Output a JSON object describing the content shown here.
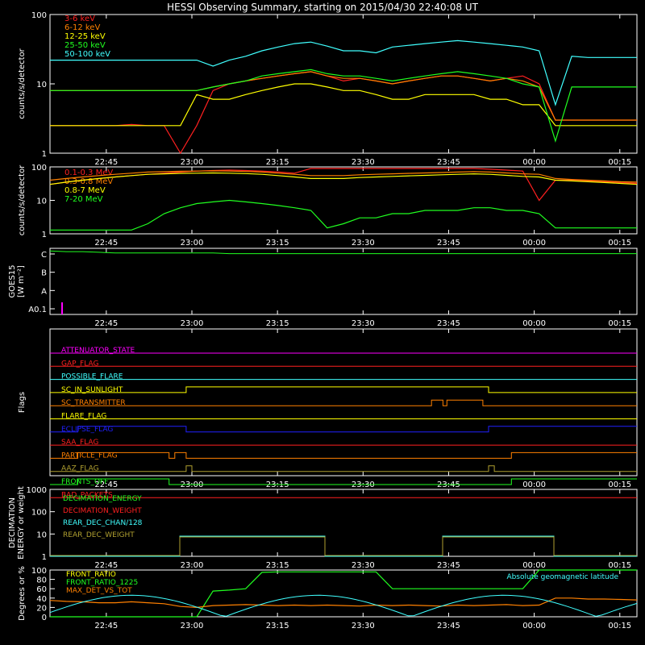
{
  "title": "HESSI Observing Summary, starting on 2015/04/30 22:40:08 UT",
  "time_ticks": [
    "22:45",
    "23:00",
    "23:15",
    "23:30",
    "23:45",
    "00:00",
    "00:15"
  ],
  "colors": {
    "red": "#ff2020",
    "orange": "#ff8000",
    "yellow": "#ffff00",
    "green": "#20ff20",
    "cyan": "#40ffff",
    "magenta": "#ff00ff",
    "blue": "#2020ff",
    "olive": "#b0a030",
    "dark_orange": "#ff7010",
    "salmon": "#ff4040"
  },
  "chart_data": [
    {
      "type": "line",
      "ylabel": "counts/s/detector",
      "yscale": "log",
      "ylim": [
        1,
        100
      ],
      "ytick_labels": [
        "1",
        "10",
        "100"
      ],
      "xlim_minutes": [
        0,
        98
      ],
      "series": [
        {
          "name": "3-6 keV",
          "color": "#ff2020",
          "y": [
            2.5,
            2.5,
            2.5,
            2.5,
            2.5,
            2.6,
            2.5,
            2.5,
            1,
            2.5,
            8,
            10,
            11,
            12,
            13,
            14,
            15,
            13,
            11,
            12,
            11,
            10,
            11,
            12,
            13,
            13,
            12,
            11,
            12,
            13,
            10,
            3,
            3,
            3,
            3,
            3,
            3
          ]
        },
        {
          "name": "6-12 keV",
          "color": "#ff8000",
          "y": [
            8,
            8,
            8,
            8,
            8,
            8,
            8,
            8,
            8,
            8,
            9,
            10,
            11,
            12,
            13,
            14,
            15,
            13,
            12,
            12,
            11,
            10,
            11,
            12,
            13,
            13,
            12,
            11,
            12,
            11,
            9,
            3,
            3,
            3,
            3,
            3,
            3
          ]
        },
        {
          "name": "12-25 keV",
          "color": "#ffff00",
          "y": [
            2.5,
            2.5,
            2.5,
            2.5,
            2.5,
            2.5,
            2.5,
            2.5,
            2.5,
            7,
            6,
            6,
            7,
            8,
            9,
            10,
            10,
            9,
            8,
            8,
            7,
            6,
            6,
            7,
            7,
            7,
            7,
            6,
            6,
            5,
            5,
            2.5,
            2.5,
            2.5,
            2.5,
            2.5,
            2.5
          ]
        },
        {
          "name": "25-50 keV",
          "color": "#20ff20",
          "y": [
            8,
            8,
            8,
            8,
            8,
            8,
            8,
            8,
            8,
            8,
            9,
            10,
            11,
            13,
            14,
            15,
            16,
            14,
            13,
            13,
            12,
            11,
            12,
            13,
            14,
            15,
            14,
            13,
            12,
            10,
            9,
            1.5,
            9,
            9,
            9,
            9,
            9
          ]
        },
        {
          "name": "50-100 keV",
          "color": "#40ffff",
          "y": [
            22,
            22,
            22,
            22,
            22,
            22,
            22,
            22,
            22,
            22,
            18,
            22,
            25,
            30,
            34,
            38,
            40,
            35,
            30,
            30,
            28,
            34,
            36,
            38,
            40,
            42,
            40,
            38,
            36,
            34,
            30,
            5,
            25,
            24,
            24,
            24,
            24
          ]
        }
      ]
    },
    {
      "type": "line",
      "ylabel": "counts/s/detector",
      "yscale": "log",
      "ylim": [
        1,
        100
      ],
      "ytick_labels": [
        "1",
        "10",
        "100"
      ],
      "xlim_minutes": [
        0,
        98
      ],
      "series": [
        {
          "name": "0.1-0.3 MeV",
          "color": "#ff2020",
          "y": [
            30,
            35,
            40,
            45,
            50,
            55,
            60,
            65,
            70,
            75,
            78,
            80,
            78,
            75,
            70,
            65,
            90,
            90,
            90,
            90,
            90,
            90,
            90,
            90,
            90,
            90,
            90,
            85,
            80,
            75,
            10,
            40,
            40,
            38,
            36,
            34,
            32
          ]
        },
        {
          "name": "0.3-0.8 MeV",
          "color": "#ff8000",
          "y": [
            40,
            45,
            50,
            55,
            60,
            65,
            70,
            72,
            74,
            75,
            76,
            75,
            73,
            70,
            65,
            60,
            55,
            55,
            55,
            58,
            60,
            62,
            64,
            66,
            68,
            70,
            72,
            70,
            66,
            62,
            60,
            45,
            42,
            40,
            38,
            36,
            35
          ]
        },
        {
          "name": "0.8-7 MeV",
          "color": "#ffff00",
          "y": [
            30,
            35,
            40,
            45,
            50,
            55,
            60,
            62,
            64,
            65,
            66,
            65,
            63,
            60,
            55,
            50,
            45,
            45,
            45,
            48,
            50,
            52,
            54,
            56,
            58,
            60,
            62,
            60,
            56,
            52,
            50,
            40,
            38,
            36,
            34,
            32,
            30
          ]
        },
        {
          "name": "7-20 MeV",
          "color": "#20ff20",
          "y": [
            1.3,
            1.3,
            1.3,
            1.3,
            1.3,
            1.3,
            2,
            4,
            6,
            8,
            9,
            10,
            9,
            8,
            7,
            6,
            5,
            1.5,
            2,
            3,
            3,
            4,
            4,
            5,
            5,
            5,
            6,
            6,
            5,
            5,
            4,
            1.5,
            1.5,
            1.5,
            1.5,
            1.5,
            1.5
          ]
        }
      ]
    },
    {
      "type": "line",
      "ylabel": "GOES15\n[W m⁻²]",
      "ytick_labels": [
        "A0.1",
        "A",
        "B",
        "C"
      ],
      "series": [
        {
          "name": "GOES long",
          "color": "#20ff20",
          "y": [
            0.96,
            0.95,
            0.95,
            0.94,
            0.93,
            0.93,
            0.93,
            0.93,
            0.93,
            0.93,
            0.93,
            0.92,
            0.92,
            0.92,
            0.92,
            0.92,
            0.92,
            0.92,
            0.92,
            0.92,
            0.92,
            0.92,
            0.92,
            0.92,
            0.92,
            0.92,
            0.92,
            0.92,
            0.92,
            0.92,
            0.92,
            0.92,
            0.92,
            0.92,
            0.92,
            0.92,
            0.92
          ]
        }
      ]
    },
    {
      "type": "line",
      "ylabel": "Flags",
      "flags": [
        {
          "name": "ATTENUATOR_STATE",
          "color": "#ff00ff",
          "transitions": []
        },
        {
          "name": "GAP_FLAG",
          "color": "#ff2020",
          "transitions": []
        },
        {
          "name": "POSSIBLE_FLARE",
          "color": "#40ffff",
          "transitions": []
        },
        {
          "name": "SC_IN_SUNLIGHT",
          "color": "#ffff00",
          "transitions": [
            [
              0,
              0
            ],
            [
              19,
              1
            ],
            [
              72,
              0
            ]
          ]
        },
        {
          "name": "SC_TRANSMITTER",
          "color": "#ff8000",
          "transitions": [
            [
              0,
              0
            ],
            [
              62,
              1
            ],
            [
              64,
              0
            ],
            [
              64.7,
              1
            ],
            [
              71,
              0
            ]
          ]
        },
        {
          "name": "FLARE_FLAG",
          "color": "#ffff00",
          "transitions": []
        },
        {
          "name": "ECLIPSE_FLAG",
          "color": "#2020ff",
          "transitions": [
            [
              0,
              1
            ],
            [
              19,
              0
            ],
            [
              72,
              1
            ]
          ]
        },
        {
          "name": "SAA_FLAG",
          "color": "#ff2020",
          "transitions": []
        },
        {
          "name": "PARTICLE_FLAG",
          "color": "#ff8000",
          "transitions": [
            [
              0,
              1
            ],
            [
              16,
              0
            ],
            [
              17,
              1
            ],
            [
              19,
              0
            ],
            [
              76,
              1
            ]
          ]
        },
        {
          "name": "AAZ_FLAG",
          "color": "#b0a030",
          "transitions": [
            [
              0,
              0
            ],
            [
              19,
              1
            ],
            [
              20,
              0
            ],
            [
              72,
              1
            ],
            [
              73,
              0
            ]
          ]
        },
        {
          "name": "FRONTS_OFF",
          "color": "#20ff20",
          "transitions": [
            [
              0,
              1
            ],
            [
              16,
              0
            ],
            [
              76,
              1
            ]
          ]
        },
        {
          "name": "BAD_PACKETS",
          "color": "#ff2020",
          "transitions": []
        }
      ]
    },
    {
      "type": "line",
      "ylabel": "DECIMATION\nENERGY or weight",
      "yscale": "log",
      "ylim": [
        1,
        1000
      ],
      "ytick_labels": [
        "1",
        "10",
        "100",
        "1000"
      ],
      "series": [
        {
          "name": "DECIMATION_ENERGY",
          "color": "#20ff20",
          "y": []
        },
        {
          "name": "DECIMATION_WEIGHT",
          "color": "#ff2020",
          "y": []
        },
        {
          "name": "REAR_DEC_CHAN/128",
          "color": "#40ffff",
          "y": []
        },
        {
          "name": "REAR_DEC_WEIGHT",
          "color": "#b0a030",
          "y": []
        }
      ]
    },
    {
      "type": "line",
      "ylabel": "Degrees or %",
      "ylim": [
        0,
        100
      ],
      "ytick_labels": [
        "0",
        "20",
        "40",
        "60",
        "80",
        "100"
      ],
      "annotation": "Absolute geomagnetic latitude",
      "series": [
        {
          "name": "FRONT_RATIO",
          "color": "#ffff00",
          "y": []
        },
        {
          "name": "FRONT_RATIO_1225",
          "color": "#20ff20",
          "y": [
            0,
            0,
            0,
            0,
            0,
            0,
            0,
            0,
            0,
            0,
            55,
            57,
            60,
            95,
            96,
            96,
            96,
            96,
            96,
            96,
            96,
            60,
            60,
            60,
            60,
            60,
            60,
            60,
            60,
            60,
            100,
            100,
            100,
            100,
            100,
            100,
            100
          ]
        },
        {
          "name": "MAX_DET_VS_TOT",
          "color": "#ff8000",
          "y": [
            35,
            33,
            32,
            30,
            30,
            32,
            30,
            28,
            22,
            20,
            24,
            25,
            26,
            25,
            24,
            25,
            24,
            25,
            24,
            23,
            25,
            24,
            25,
            24,
            23,
            25,
            24,
            25,
            26,
            24,
            25,
            40,
            40,
            38,
            38,
            37,
            36
          ]
        }
      ]
    }
  ]
}
